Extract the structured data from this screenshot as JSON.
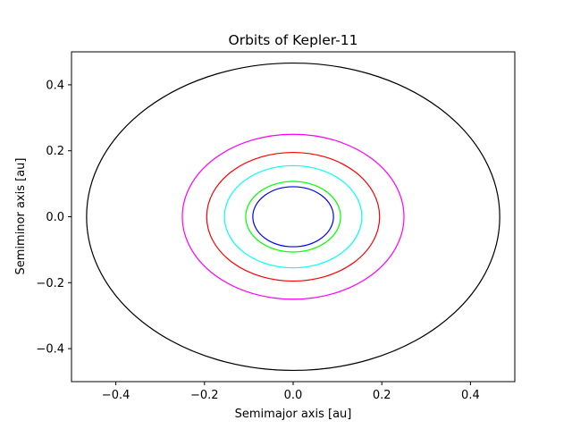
{
  "chart_data": {
    "type": "line",
    "title": "Orbits of Kepler-11",
    "xlabel": "Semimajor axis [au]",
    "ylabel": "Semiminor axis [au]",
    "xlim": [
      -0.5,
      0.5
    ],
    "ylim": [
      -0.5,
      0.5
    ],
    "xticks": [
      -0.4,
      -0.2,
      0.0,
      0.2,
      0.4
    ],
    "yticks": [
      -0.4,
      -0.2,
      0.0,
      0.2,
      0.4
    ],
    "xtick_labels": [
      "−0.4",
      "−0.2",
      "0.0",
      "0.2",
      "0.4"
    ],
    "ytick_labels": [
      "−0.4",
      "−0.2",
      "0.0",
      "0.2",
      "0.4"
    ],
    "grid": false,
    "series": [
      {
        "semimajor": 0.091,
        "semiminor": 0.091,
        "color": "#0000ff"
      },
      {
        "semimajor": 0.107,
        "semiminor": 0.107,
        "color": "#00ff00"
      },
      {
        "semimajor": 0.155,
        "semiminor": 0.155,
        "color": "#00ffff"
      },
      {
        "semimajor": 0.195,
        "semiminor": 0.195,
        "color": "#ff0000"
      },
      {
        "semimajor": 0.25,
        "semiminor": 0.25,
        "color": "#ff00ff"
      },
      {
        "semimajor": 0.466,
        "semiminor": 0.466,
        "color": "#000000"
      }
    ]
  }
}
